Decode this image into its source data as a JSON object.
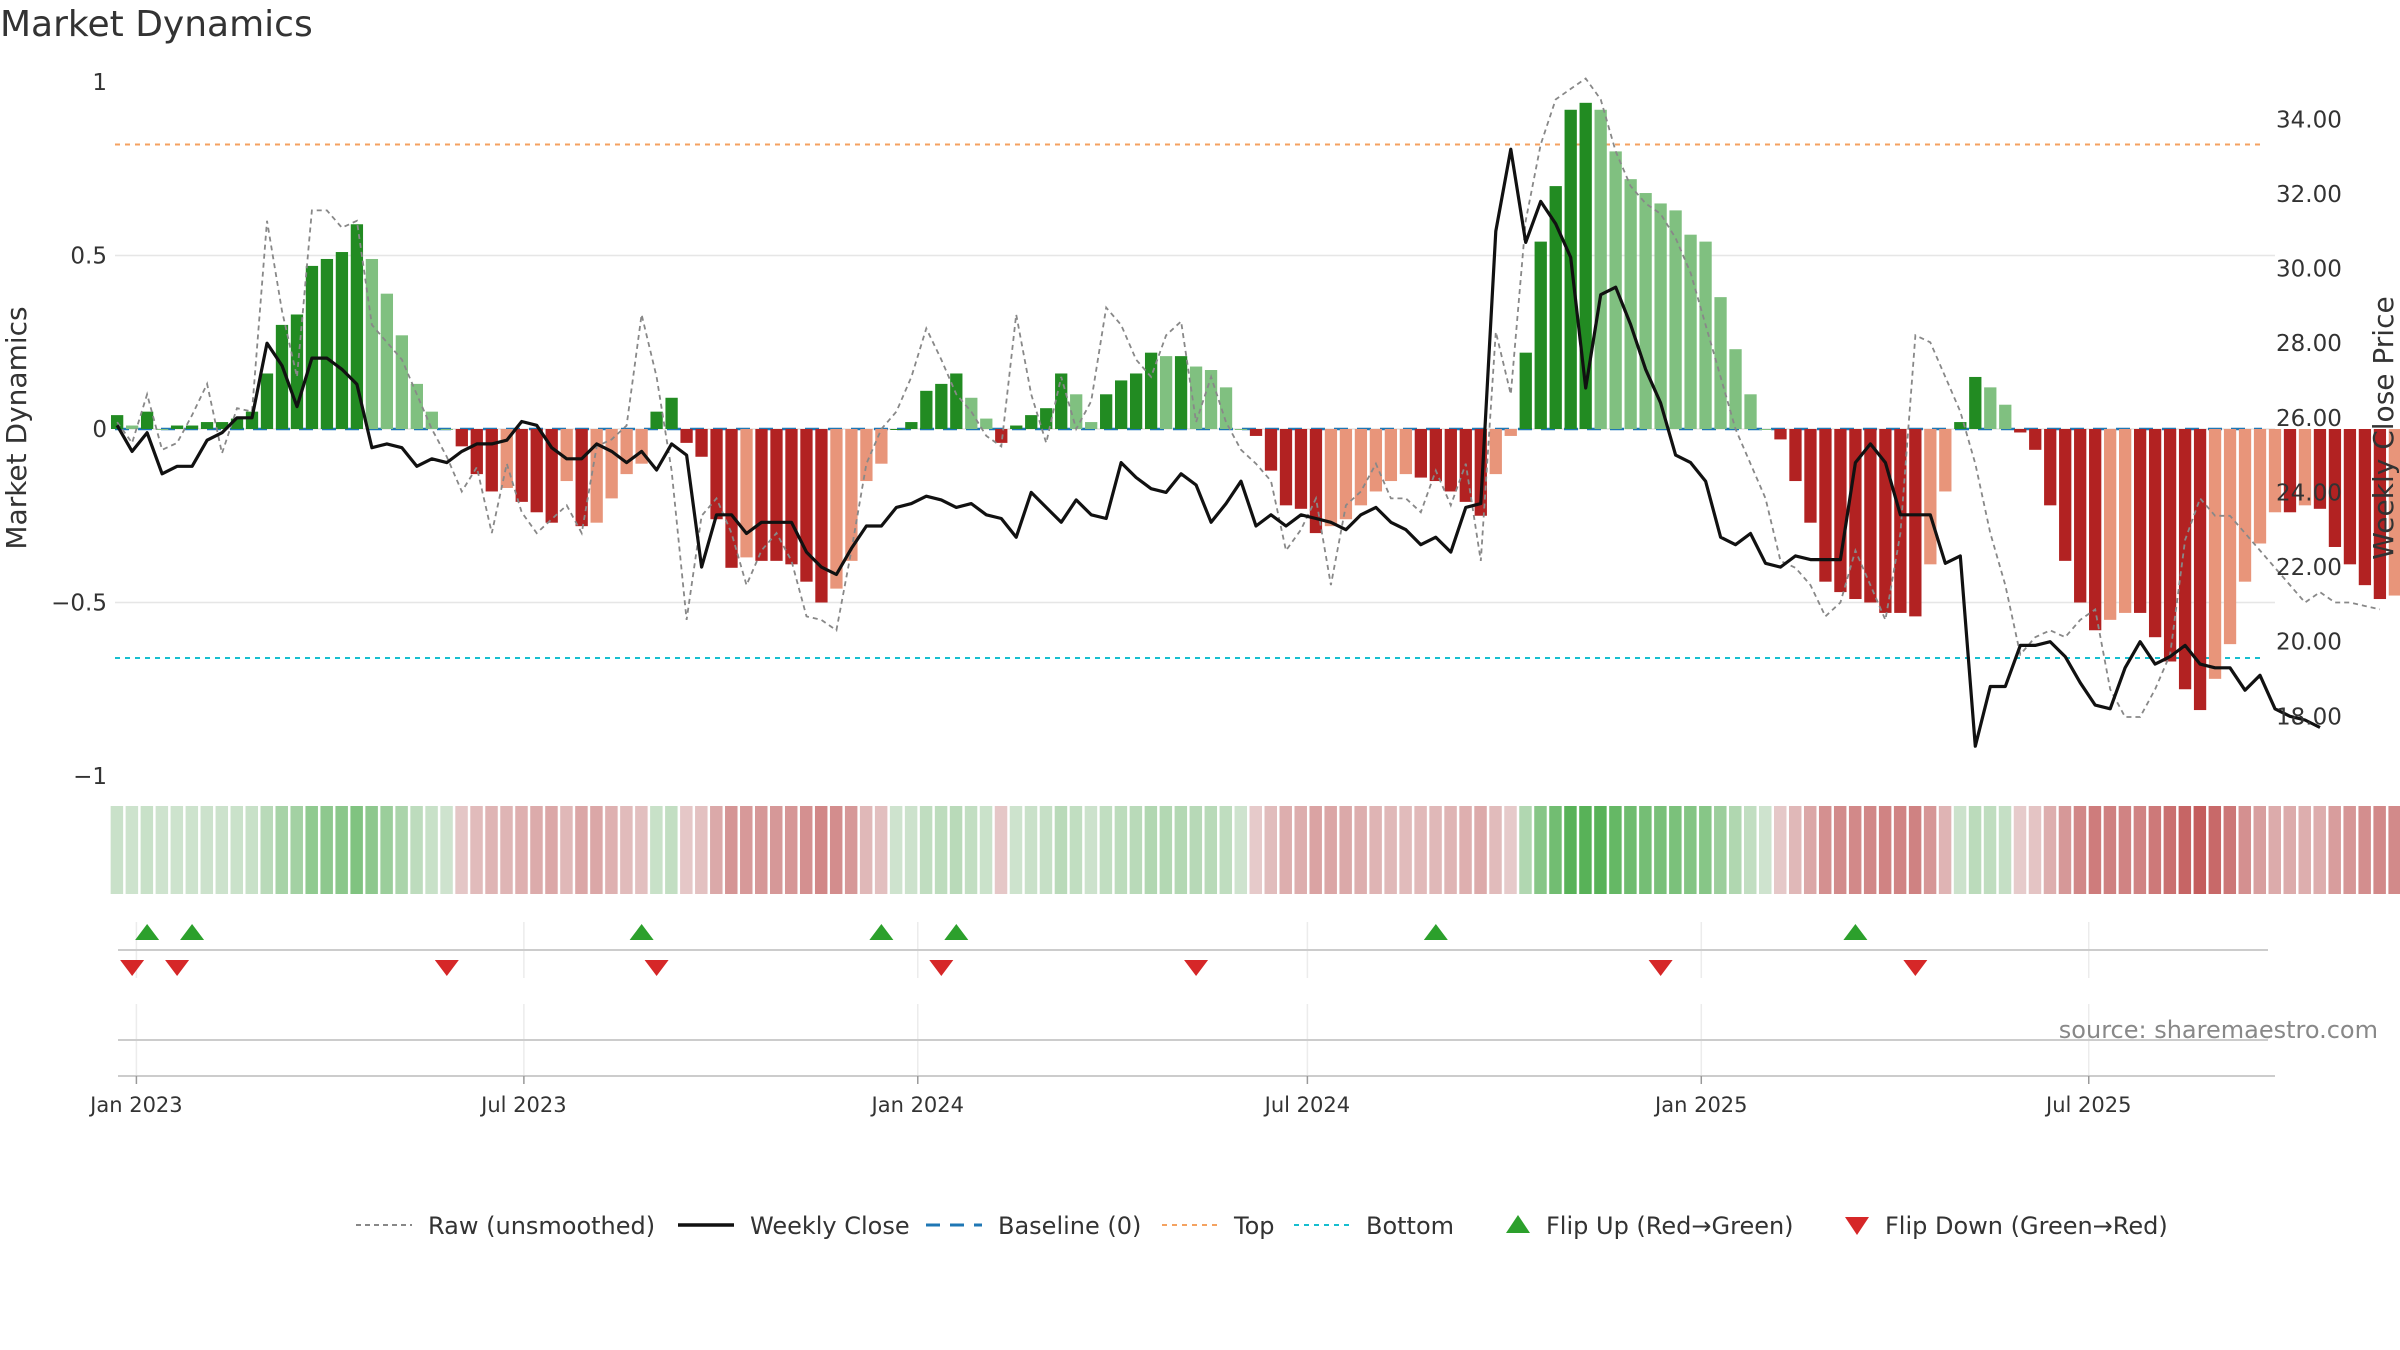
{
  "title": "Market Dynamics",
  "source": "source: sharemaestro.com",
  "colors": {
    "strong_green": "#228b22",
    "light_green": "#80c080",
    "strong_red": "#b22222",
    "light_red": "#e8957a",
    "raw": "#888888",
    "close": "#111111",
    "baseline": "#1f77b4",
    "top": "#f4a261",
    "bottom": "#17becf",
    "flip_up": "#2ca02c",
    "flip_down": "#d62728"
  },
  "legend": [
    {
      "key": "raw",
      "label": "Raw (unsmoothed)"
    },
    {
      "key": "close",
      "label": "Weekly Close"
    },
    {
      "key": "baseline",
      "label": "Baseline (0)"
    },
    {
      "key": "top",
      "label": "Top"
    },
    {
      "key": "bottom",
      "label": "Bottom"
    },
    {
      "key": "flip_up",
      "label": "Flip Up (Red→Green)"
    },
    {
      "key": "flip_down",
      "label": "Flip Down (Green→Red)"
    }
  ],
  "chart_data": {
    "type": "bar",
    "title": "Market Dynamics",
    "ylabel": "Market Dynamics",
    "y2label": "Weekly Close Price",
    "ylim": [
      -1,
      1
    ],
    "y2lim": [
      16.4,
      35.0
    ],
    "yticks": [
      "1",
      "0.5",
      "0",
      "−0.5",
      "−1"
    ],
    "y2ticks": [
      "34.00",
      "32.00",
      "30.00",
      "28.00",
      "26.00",
      "24.00",
      "22.00",
      "20.00",
      "18.00"
    ],
    "xlabels": [
      "Jan 2023",
      "Jul 2023",
      "Jan 2024",
      "Jul 2024",
      "Jan 2025",
      "Jul 2025"
    ],
    "xlim": [
      "2022-12-22",
      "2025-09-26"
    ],
    "top_level": 0.82,
    "bottom_level": -0.66,
    "baseline": 0,
    "start_date": "2022-12-23",
    "smoothed": [
      0.04,
      0.01,
      0.05,
      0.0,
      0.01,
      0.01,
      0.02,
      0.02,
      0.03,
      0.05,
      0.16,
      0.3,
      0.33,
      0.47,
      0.49,
      0.51,
      0.59,
      0.49,
      0.39,
      0.27,
      0.13,
      0.05,
      0.0,
      -0.05,
      -0.13,
      -0.18,
      -0.17,
      -0.21,
      -0.24,
      -0.27,
      -0.15,
      -0.28,
      -0.27,
      -0.2,
      -0.13,
      -0.1,
      0.05,
      0.09,
      -0.04,
      -0.08,
      -0.26,
      -0.4,
      -0.37,
      -0.38,
      -0.38,
      -0.39,
      -0.44,
      -0.5,
      -0.46,
      -0.38,
      -0.15,
      -0.1,
      0.0,
      0.02,
      0.11,
      0.13,
      0.16,
      0.09,
      0.03,
      -0.04,
      0.01,
      0.04,
      0.06,
      0.16,
      0.1,
      0.02,
      0.1,
      0.14,
      0.16,
      0.22,
      0.21,
      0.21,
      0.18,
      0.17,
      0.12,
      0.0,
      -0.02,
      -0.12,
      -0.22,
      -0.23,
      -0.3,
      -0.28,
      -0.26,
      -0.22,
      -0.18,
      -0.15,
      -0.13,
      -0.14,
      -0.15,
      -0.18,
      -0.21,
      -0.25,
      -0.13,
      -0.02,
      0.22,
      0.54,
      0.7,
      0.92,
      0.94,
      0.92,
      0.8,
      0.72,
      0.68,
      0.65,
      0.63,
      0.56,
      0.54,
      0.38,
      0.23,
      0.1,
      0.0,
      -0.03,
      -0.15,
      -0.27,
      -0.44,
      -0.47,
      -0.49,
      -0.5,
      -0.53,
      -0.53,
      -0.54,
      -0.39,
      -0.18,
      0.02,
      0.15,
      0.12,
      0.07,
      -0.01,
      -0.06,
      -0.22,
      -0.38,
      -0.5,
      -0.58,
      -0.55,
      -0.53,
      -0.53,
      -0.6,
      -0.67,
      -0.75,
      -0.81,
      -0.72,
      -0.62,
      -0.44,
      -0.33,
      -0.24,
      -0.24,
      -0.22,
      -0.23,
      -0.34,
      -0.39,
      -0.45,
      -0.49,
      -0.48,
      -0.5
    ],
    "raw": [
      0.02,
      -0.04,
      0.1,
      -0.06,
      -0.04,
      0.04,
      0.13,
      -0.07,
      0.06,
      0.05,
      0.6,
      0.34,
      0.15,
      0.63,
      0.63,
      0.58,
      0.6,
      0.3,
      0.25,
      0.2,
      0.1,
      0.0,
      -0.08,
      -0.18,
      -0.11,
      -0.3,
      -0.1,
      -0.24,
      -0.3,
      -0.26,
      -0.22,
      -0.3,
      -0.05,
      -0.03,
      0.01,
      0.33,
      0.15,
      -0.12,
      -0.55,
      -0.25,
      -0.2,
      -0.3,
      -0.45,
      -0.35,
      -0.3,
      -0.38,
      -0.54,
      -0.55,
      -0.58,
      -0.35,
      -0.1,
      0.0,
      0.05,
      0.15,
      0.29,
      0.2,
      0.1,
      0.05,
      -0.02,
      -0.05,
      0.33,
      0.1,
      -0.04,
      0.15,
      0.0,
      0.08,
      0.35,
      0.3,
      0.2,
      0.15,
      0.27,
      0.31,
      0.02,
      0.15,
      0.02,
      -0.06,
      -0.1,
      -0.15,
      -0.35,
      -0.29,
      -0.2,
      -0.45,
      -0.22,
      -0.18,
      -0.1,
      -0.2,
      -0.2,
      -0.24,
      -0.12,
      -0.22,
      -0.1,
      -0.38,
      0.28,
      0.1,
      0.6,
      0.82,
      0.95,
      0.98,
      1.01,
      0.95,
      0.8,
      0.7,
      0.65,
      0.62,
      0.55,
      0.45,
      0.3,
      0.15,
      0.0,
      -0.1,
      -0.2,
      -0.38,
      -0.4,
      -0.45,
      -0.54,
      -0.5,
      -0.35,
      -0.45,
      -0.55,
      -0.3,
      0.27,
      0.25,
      0.15,
      0.05,
      -0.1,
      -0.3,
      -0.45,
      -0.65,
      -0.6,
      -0.58,
      -0.6,
      -0.55,
      -0.52,
      -0.75,
      -0.83,
      -0.83,
      -0.75,
      -0.65,
      -0.32,
      -0.2,
      -0.25,
      -0.25,
      -0.3,
      -0.35,
      -0.4,
      -0.45,
      -0.5,
      -0.47,
      -0.5,
      -0.5,
      -0.51,
      -0.52
    ],
    "close": [
      25.8,
      25.1,
      25.6,
      24.5,
      24.7,
      24.7,
      25.4,
      25.6,
      26.0,
      26.0,
      28.0,
      27.4,
      26.3,
      27.6,
      27.6,
      27.3,
      26.9,
      25.2,
      25.3,
      25.2,
      24.7,
      24.9,
      24.8,
      25.1,
      25.3,
      25.3,
      25.4,
      25.9,
      25.8,
      25.2,
      24.9,
      24.9,
      25.3,
      25.1,
      24.8,
      25.1,
      24.6,
      25.3,
      25.0,
      22.0,
      23.4,
      23.4,
      22.9,
      23.2,
      23.2,
      23.2,
      22.4,
      22.0,
      21.8,
      22.5,
      23.1,
      23.1,
      23.6,
      23.7,
      23.9,
      23.8,
      23.6,
      23.7,
      23.4,
      23.3,
      22.8,
      24.0,
      23.6,
      23.2,
      23.8,
      23.4,
      23.3,
      24.8,
      24.4,
      24.1,
      24.0,
      24.5,
      24.2,
      23.2,
      23.7,
      24.3,
      23.1,
      23.4,
      23.1,
      23.4,
      23.3,
      23.2,
      23.0,
      23.4,
      23.6,
      23.2,
      23.0,
      22.6,
      22.8,
      22.4,
      23.6,
      23.7,
      31.0,
      33.2,
      30.7,
      31.8,
      31.2,
      30.3,
      26.8,
      29.3,
      29.5,
      28.5,
      27.3,
      26.4,
      25.0,
      24.8,
      24.3,
      22.8,
      22.6,
      22.9,
      22.1,
      22.0,
      22.3,
      22.2,
      22.2,
      22.2,
      24.8,
      25.3,
      24.8,
      23.4,
      23.4,
      23.4,
      22.1,
      22.3,
      17.2,
      18.8,
      18.8,
      19.9,
      19.9,
      20.0,
      19.6,
      18.9,
      18.3,
      18.2,
      19.3,
      20.0,
      19.4,
      19.6,
      19.9,
      19.4,
      19.3,
      19.3,
      18.7,
      19.1,
      18.2,
      18.0,
      17.9,
      17.7
    ],
    "flip_up_dates": [
      "2023-01-06",
      "2023-01-27",
      "2023-08-25",
      "2023-12-15",
      "2024-01-19",
      "2024-08-30",
      "2025-03-14"
    ],
    "flip_down_dates": [
      "2022-12-30",
      "2023-01-20",
      "2023-05-26",
      "2023-09-01",
      "2024-01-12",
      "2024-05-10",
      "2024-12-13",
      "2025-04-11"
    ]
  }
}
